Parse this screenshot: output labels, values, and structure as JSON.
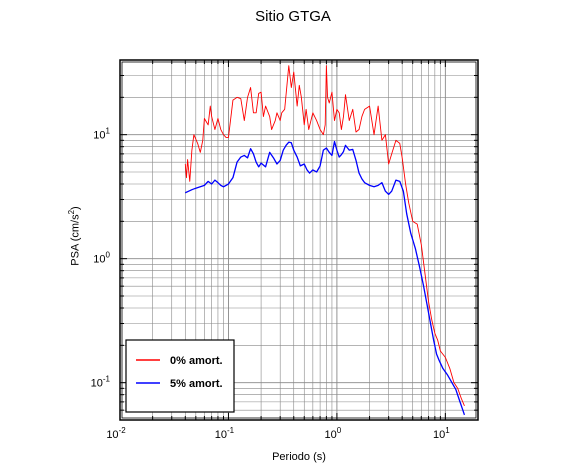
{
  "chart_data": {
    "type": "line",
    "title": "Sitio GTGA",
    "xlabel": "Periodo (s)",
    "ylabel": "PSA (cm/s",
    "ylabel_sup": "2",
    "ylabel_close": ")",
    "xscale": "log",
    "yscale": "log",
    "xlim": [
      0.01,
      20
    ],
    "ylim": [
      0.05,
      40
    ],
    "grid": true,
    "legend_position": "bottom-left",
    "x_ticks": [
      {
        "base": "10",
        "exp": "-2",
        "value": 0.01
      },
      {
        "base": "10",
        "exp": "-1",
        "value": 0.1
      },
      {
        "base": "10",
        "exp": "0",
        "value": 1
      },
      {
        "base": "10",
        "exp": "1",
        "value": 10
      }
    ],
    "y_ticks": [
      {
        "base": "10",
        "exp": "-1",
        "value": 0.1
      },
      {
        "base": "10",
        "exp": "0",
        "value": 1
      },
      {
        "base": "10",
        "exp": "1",
        "value": 10
      }
    ],
    "series": [
      {
        "name": "0% amort.",
        "color": "#ff0000",
        "points": [
          [
            0.04,
            5.8
          ],
          [
            0.041,
            4.5
          ],
          [
            0.042,
            6.3
          ],
          [
            0.044,
            4.2
          ],
          [
            0.046,
            7.5
          ],
          [
            0.048,
            10.0
          ],
          [
            0.052,
            8.5
          ],
          [
            0.055,
            7.2
          ],
          [
            0.058,
            9.0
          ],
          [
            0.06,
            13.5
          ],
          [
            0.065,
            12.0
          ],
          [
            0.068,
            17.0
          ],
          [
            0.07,
            14.0
          ],
          [
            0.075,
            11.0
          ],
          [
            0.08,
            13.5
          ],
          [
            0.085,
            11.0
          ],
          [
            0.09,
            10.0
          ],
          [
            0.095,
            9.5
          ],
          [
            0.1,
            9.5
          ],
          [
            0.11,
            19.0
          ],
          [
            0.12,
            20.0
          ],
          [
            0.13,
            19.5
          ],
          [
            0.14,
            13.0
          ],
          [
            0.15,
            20.0
          ],
          [
            0.16,
            24.0
          ],
          [
            0.17,
            15.0
          ],
          [
            0.18,
            15.0
          ],
          [
            0.19,
            21.5
          ],
          [
            0.2,
            22.0
          ],
          [
            0.21,
            14.0
          ],
          [
            0.22,
            17.0
          ],
          [
            0.24,
            14.0
          ],
          [
            0.25,
            11.0
          ],
          [
            0.27,
            13.0
          ],
          [
            0.28,
            15.0
          ],
          [
            0.3,
            13.0
          ],
          [
            0.31,
            15.0
          ],
          [
            0.33,
            16.0
          ],
          [
            0.36,
            36.0
          ],
          [
            0.38,
            24.0
          ],
          [
            0.4,
            32.0
          ],
          [
            0.43,
            17.0
          ],
          [
            0.45,
            25.0
          ],
          [
            0.47,
            20.0
          ],
          [
            0.5,
            12.0
          ],
          [
            0.52,
            16.0
          ],
          [
            0.55,
            11.0
          ],
          [
            0.6,
            15.0
          ],
          [
            0.65,
            13.0
          ],
          [
            0.7,
            11.0
          ],
          [
            0.75,
            10.0
          ],
          [
            0.78,
            12.0
          ],
          [
            0.8,
            36.0
          ],
          [
            0.82,
            20.0
          ],
          [
            0.85,
            18.0
          ],
          [
            0.9,
            22.0
          ],
          [
            0.95,
            13.0
          ],
          [
            1.0,
            16.0
          ],
          [
            1.05,
            15.0
          ],
          [
            1.1,
            11.0
          ],
          [
            1.15,
            14.0
          ],
          [
            1.2,
            21.0
          ],
          [
            1.3,
            13.0
          ],
          [
            1.4,
            16.0
          ],
          [
            1.5,
            10.5
          ],
          [
            1.6,
            11.0
          ],
          [
            1.7,
            14.0
          ],
          [
            1.8,
            16.0
          ],
          [
            2.0,
            17.0
          ],
          [
            2.2,
            10.0
          ],
          [
            2.4,
            17.0
          ],
          [
            2.6,
            9.0
          ],
          [
            2.8,
            10.0
          ],
          [
            3.0,
            5.8
          ],
          [
            3.2,
            7.0
          ],
          [
            3.5,
            9.0
          ],
          [
            3.8,
            8.5
          ],
          [
            4.0,
            6.5
          ],
          [
            4.3,
            4.0
          ],
          [
            4.6,
            2.8
          ],
          [
            5.0,
            2.0
          ],
          [
            5.5,
            1.9
          ],
          [
            6.0,
            1.3
          ],
          [
            6.5,
            0.75
          ],
          [
            7.0,
            0.45
          ],
          [
            7.5,
            0.32
          ],
          [
            8.0,
            0.25
          ],
          [
            8.5,
            0.22
          ],
          [
            9.0,
            0.18
          ],
          [
            10.0,
            0.16
          ],
          [
            11.0,
            0.13
          ],
          [
            12.0,
            0.1
          ],
          [
            13.0,
            0.09
          ],
          [
            14.0,
            0.075
          ],
          [
            15.0,
            0.065
          ]
        ]
      },
      {
        "name": "5% amort.",
        "color": "#0000ff",
        "points": [
          [
            0.04,
            3.4
          ],
          [
            0.043,
            3.5
          ],
          [
            0.046,
            3.6
          ],
          [
            0.05,
            3.7
          ],
          [
            0.055,
            3.8
          ],
          [
            0.06,
            3.9
          ],
          [
            0.065,
            4.2
          ],
          [
            0.07,
            4.0
          ],
          [
            0.075,
            4.3
          ],
          [
            0.08,
            4.1
          ],
          [
            0.085,
            3.9
          ],
          [
            0.09,
            3.8
          ],
          [
            0.095,
            3.9
          ],
          [
            0.1,
            4.0
          ],
          [
            0.11,
            4.5
          ],
          [
            0.12,
            6.0
          ],
          [
            0.13,
            6.6
          ],
          [
            0.14,
            6.8
          ],
          [
            0.15,
            6.5
          ],
          [
            0.16,
            7.7
          ],
          [
            0.17,
            7.0
          ],
          [
            0.18,
            6.0
          ],
          [
            0.19,
            5.5
          ],
          [
            0.2,
            5.9
          ],
          [
            0.22,
            5.5
          ],
          [
            0.24,
            7.2
          ],
          [
            0.26,
            6.5
          ],
          [
            0.28,
            5.8
          ],
          [
            0.3,
            6.2
          ],
          [
            0.32,
            7.5
          ],
          [
            0.34,
            8.2
          ],
          [
            0.36,
            8.7
          ],
          [
            0.38,
            8.6
          ],
          [
            0.4,
            7.5
          ],
          [
            0.43,
            6.6
          ],
          [
            0.46,
            5.6
          ],
          [
            0.5,
            5.8
          ],
          [
            0.53,
            5.2
          ],
          [
            0.56,
            4.9
          ],
          [
            0.6,
            5.2
          ],
          [
            0.65,
            5.0
          ],
          [
            0.7,
            5.6
          ],
          [
            0.75,
            7.5
          ],
          [
            0.8,
            7.8
          ],
          [
            0.85,
            7.2
          ],
          [
            0.9,
            6.8
          ],
          [
            0.95,
            8.8
          ],
          [
            1.0,
            7.5
          ],
          [
            1.05,
            6.6
          ],
          [
            1.1,
            6.9
          ],
          [
            1.15,
            7.3
          ],
          [
            1.2,
            8.2
          ],
          [
            1.3,
            7.5
          ],
          [
            1.4,
            7.6
          ],
          [
            1.5,
            6.2
          ],
          [
            1.6,
            4.9
          ],
          [
            1.7,
            4.4
          ],
          [
            1.8,
            4.1
          ],
          [
            2.0,
            3.9
          ],
          [
            2.2,
            3.8
          ],
          [
            2.4,
            3.9
          ],
          [
            2.6,
            4.1
          ],
          [
            2.8,
            3.5
          ],
          [
            3.0,
            3.3
          ],
          [
            3.2,
            3.5
          ],
          [
            3.5,
            4.3
          ],
          [
            3.8,
            4.2
          ],
          [
            4.1,
            3.5
          ],
          [
            4.4,
            2.3
          ],
          [
            4.8,
            1.6
          ],
          [
            5.3,
            1.2
          ],
          [
            5.8,
            0.85
          ],
          [
            6.3,
            0.6
          ],
          [
            6.8,
            0.42
          ],
          [
            7.3,
            0.3
          ],
          [
            7.8,
            0.22
          ],
          [
            8.3,
            0.17
          ],
          [
            8.8,
            0.15
          ],
          [
            9.5,
            0.13
          ],
          [
            10.5,
            0.115
          ],
          [
            11.5,
            0.1
          ],
          [
            12.5,
            0.088
          ],
          [
            13.5,
            0.072
          ],
          [
            14.5,
            0.06
          ],
          [
            15.0,
            0.055
          ]
        ]
      }
    ]
  }
}
